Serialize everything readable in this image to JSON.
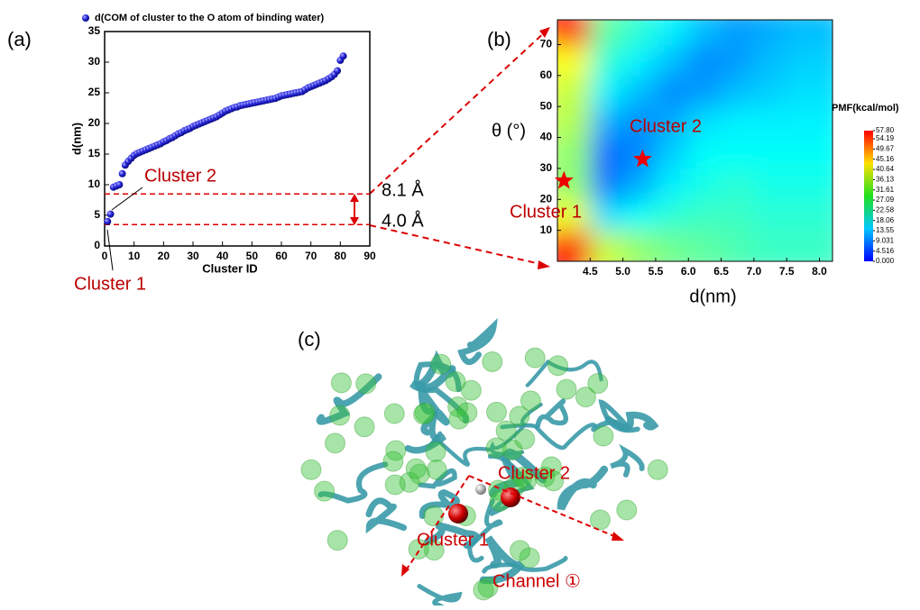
{
  "panel_labels": [
    "(a)",
    "(b)",
    "(c)"
  ],
  "chart_data": [
    {
      "type": "scatter",
      "xlabel": "Cluster ID",
      "ylabel": "d(nm)",
      "xlim": [
        0,
        90
      ],
      "xticks": [
        0,
        10,
        20,
        30,
        40,
        50,
        60,
        70,
        80,
        90
      ],
      "ylim": [
        0,
        35
      ],
      "yticks": [
        0,
        5,
        10,
        15,
        20,
        25,
        30,
        35
      ],
      "x": [
        1,
        2,
        3,
        4,
        5,
        6,
        7,
        8,
        9,
        10,
        11,
        12,
        13,
        14,
        15,
        16,
        17,
        18,
        19,
        20,
        21,
        22,
        23,
        24,
        25,
        26,
        27,
        28,
        29,
        30,
        31,
        32,
        33,
        34,
        35,
        36,
        37,
        38,
        39,
        40,
        41,
        42,
        43,
        44,
        45,
        46,
        47,
        48,
        49,
        50,
        51,
        52,
        53,
        54,
        55,
        56,
        57,
        58,
        59,
        60,
        61,
        62,
        63,
        64,
        65,
        66,
        67,
        68,
        69,
        70,
        71,
        72,
        73,
        74,
        75,
        76,
        77,
        78,
        79,
        80,
        81
      ],
      "series": [
        {
          "name": "d(COM of cluster to the O atom of binding water)",
          "color": "#2020d0",
          "values": [
            4.0,
            5.2,
            9.6,
            9.8,
            10.0,
            11.8,
            13.2,
            13.8,
            14.3,
            14.8,
            15.1,
            15.3,
            15.5,
            15.7,
            15.9,
            16.1,
            16.3,
            16.5,
            16.7,
            17.0,
            17.2,
            17.5,
            17.7,
            18.0,
            18.3,
            18.5,
            18.8,
            19.0,
            19.2,
            19.5,
            19.7,
            19.9,
            20.1,
            20.3,
            20.5,
            20.7,
            20.9,
            21.1,
            21.4,
            21.7,
            22.0,
            22.2,
            22.4,
            22.6,
            22.7,
            22.9,
            23.0,
            23.1,
            23.2,
            23.3,
            23.4,
            23.5,
            23.6,
            23.7,
            23.8,
            23.9,
            24.0,
            24.1,
            24.3,
            24.5,
            24.6,
            24.7,
            24.8,
            24.9,
            25.0,
            25.1,
            25.2,
            25.5,
            25.8,
            26.0,
            26.2,
            26.4,
            26.6,
            26.8,
            27.0,
            27.3,
            27.6,
            28.0,
            28.6,
            30.3,
            31.0
          ]
        }
      ],
      "hlines": [
        8.5,
        3.5
      ],
      "annotations": [
        "Cluster 2",
        "Cluster 1",
        "8.1 Å",
        "4.0 Å"
      ]
    },
    {
      "type": "heatmap",
      "xlabel": "d(nm)",
      "ylabel": "θ (°)",
      "xlim": [
        4.0,
        8.2
      ],
      "xticks": [
        4.5,
        {
          "value": 5.0,
          "label": "5.0"
        },
        5.5,
        {
          "value": 6.0,
          "label": "6.0"
        },
        6.5,
        {
          "value": 7.0,
          "label": "7.0"
        },
        7.5,
        {
          "value": 8.0,
          "label": "8.0"
        }
      ],
      "ylim": [
        0,
        78
      ],
      "yticks": [
        10,
        20,
        30,
        40,
        50,
        60,
        70
      ],
      "xbins": [
        4.0,
        4.5,
        5.0,
        5.5,
        6.0,
        6.5,
        7.0,
        7.5,
        8.2
      ],
      "ybins": [
        0,
        10,
        20,
        30,
        40,
        50,
        60,
        70,
        78
      ],
      "z": [
        [
          50,
          33,
          30,
          28,
          27,
          26,
          25,
          25
        ],
        [
          35,
          20,
          22,
          24,
          25,
          25,
          24,
          24
        ],
        [
          30,
          14,
          17,
          21,
          23,
          24,
          23,
          23
        ],
        [
          30,
          13,
          15,
          19,
          22,
          22,
          22,
          22
        ],
        [
          32,
          17,
          15,
          17,
          20,
          21,
          21,
          21
        ],
        [
          33,
          21,
          18,
          15,
          16,
          18,
          19,
          20
        ],
        [
          36,
          24,
          21,
          18,
          15,
          16,
          18,
          19
        ],
        [
          50,
          27,
          24,
          21,
          18,
          16,
          17,
          18
        ]
      ],
      "colorbar": {
        "title": "PMF(kcal/mol)",
        "lim": [
          0,
          57.8
        ],
        "ticks": [
          {
            "value": 57.8,
            "label": "57.80"
          },
          54.19,
          49.67,
          45.16,
          40.64,
          36.13,
          31.61,
          27.09,
          22.58,
          18.06,
          13.55,
          9.031,
          4.516,
          {
            "value": 0,
            "label": "0.000"
          }
        ]
      },
      "points": [
        {
          "label": "Cluster 1",
          "x": 4.1,
          "y": 26
        },
        {
          "label": "Cluster 2",
          "x": 5.3,
          "y": 33
        }
      ]
    }
  ],
  "panel_c": {
    "annotations": [
      "Cluster 2",
      "Cluster 1",
      "Channel ①"
    ]
  }
}
